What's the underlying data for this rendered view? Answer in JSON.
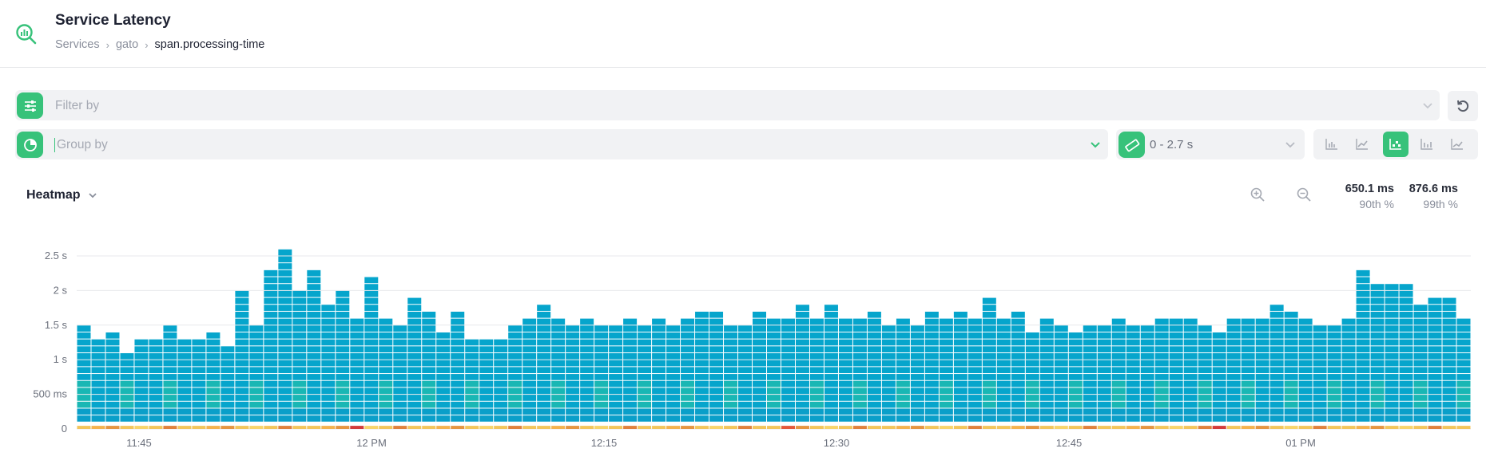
{
  "header": {
    "title": "Service Latency",
    "breadcrumb": [
      "Services",
      "gato",
      "span.processing-time"
    ]
  },
  "toolbar": {
    "filter_placeholder": "Filter by",
    "group_placeholder": "Group by",
    "range_value": "0 - 2.7 s"
  },
  "heatmap": {
    "view_label": "Heatmap",
    "stats": [
      {
        "value": "650.1 ms",
        "label": "90th %"
      },
      {
        "value": "876.6 ms",
        "label": "99th %"
      }
    ]
  },
  "colors": {
    "accent": "#37c27a",
    "cell": "#06a5cc",
    "cell_dense": "#19b7b4"
  },
  "chart_data": {
    "type": "heatmap",
    "y_ticks": [
      "0",
      "500 ms",
      "1 s",
      "1.5 s",
      "2 s",
      "2.5 s"
    ],
    "y_values": [
      0,
      0.5,
      1,
      1.5,
      2,
      2.5
    ],
    "x_ticks": [
      "11:45",
      "12 PM",
      "12:15",
      "12:30",
      "12:45",
      "01 PM"
    ],
    "ylim": [
      0,
      2.7
    ],
    "bucket_size_s": 0.1,
    "column_max_s": [
      1.5,
      1.3,
      1.4,
      1.1,
      1.3,
      1.3,
      1.5,
      1.3,
      1.3,
      1.4,
      1.2,
      2.0,
      1.5,
      2.3,
      2.6,
      2.0,
      2.3,
      1.8,
      2.0,
      1.6,
      2.2,
      1.6,
      1.5,
      1.9,
      1.7,
      1.4,
      1.7,
      1.3,
      1.3,
      1.3,
      1.5,
      1.6,
      1.8,
      1.6,
      1.5,
      1.6,
      1.5,
      1.5,
      1.6,
      1.5,
      1.6,
      1.5,
      1.6,
      1.7,
      1.7,
      1.5,
      1.5,
      1.7,
      1.6,
      1.6,
      1.8,
      1.6,
      1.8,
      1.6,
      1.6,
      1.7,
      1.5,
      1.6,
      1.5,
      1.7,
      1.6,
      1.7,
      1.6,
      1.9,
      1.6,
      1.7,
      1.4,
      1.6,
      1.5,
      1.4,
      1.5,
      1.5,
      1.6,
      1.5,
      1.5,
      1.6,
      1.6,
      1.6,
      1.5,
      1.4,
      1.6,
      1.6,
      1.6,
      1.8,
      1.7,
      1.6,
      1.5,
      1.5,
      1.6,
      2.3,
      2.1,
      2.1,
      2.1,
      1.8,
      1.9,
      1.9,
      1.6
    ],
    "row_buckets": [
      "yellow",
      "orange",
      "red"
    ]
  }
}
